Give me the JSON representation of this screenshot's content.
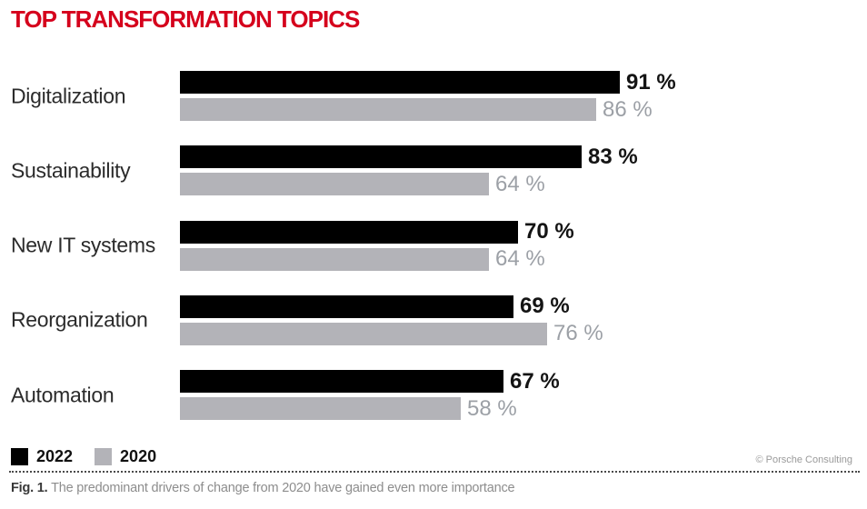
{
  "title": "TOP TRANSFORMATION TOPICS",
  "title_color": "#d5001c",
  "chart_data": {
    "type": "bar",
    "orientation": "horizontal",
    "title": "TOP TRANSFORMATION TOPICS",
    "categories": [
      "Digitalization",
      "Sustainability",
      "New IT systems",
      "Reorganization",
      "Automation"
    ],
    "series": [
      {
        "name": "2022",
        "color": "#000000",
        "values": [
          91,
          83,
          70,
          69,
          67
        ]
      },
      {
        "name": "2020",
        "color": "#b3b3b8",
        "values": [
          86,
          64,
          64,
          76,
          58
        ]
      }
    ],
    "value_suffix": " %",
    "xlim": [
      0,
      100
    ],
    "grid": false,
    "legend_position": "bottom-left"
  },
  "legend": {
    "items": [
      {
        "label": "2022",
        "color": "#000000"
      },
      {
        "label": "2020",
        "color": "#b3b3b8"
      }
    ]
  },
  "credit": "© Porsche Consulting",
  "caption": {
    "prefix": "Fig. 1.",
    "text": " The predominant drivers of change from 2020 have gained even more importance"
  }
}
